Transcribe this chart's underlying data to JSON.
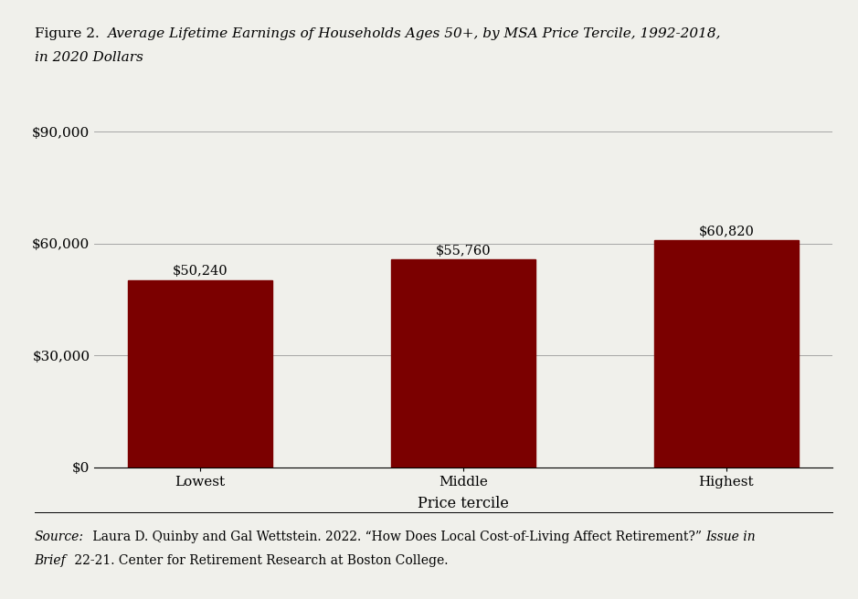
{
  "categories": [
    "Lowest",
    "Middle",
    "Highest"
  ],
  "values": [
    50240,
    55760,
    60820
  ],
  "bar_color": "#7B0000",
  "bar_labels": [
    "$50,240",
    "$55,760",
    "$60,820"
  ],
  "xlabel": "Price tercile",
  "ylim": [
    0,
    90000
  ],
  "yticks": [
    0,
    30000,
    60000,
    90000
  ],
  "ytick_labels": [
    "$0",
    "$30,000",
    "$60,000",
    "$90,000"
  ],
  "background_color": "#f0f0eb",
  "bar_label_fontsize": 10.5,
  "axis_label_fontsize": 11.5,
  "tick_label_fontsize": 11,
  "title_fontsize": 11,
  "source_fontsize": 10,
  "title_prefix": "Figure 2. ",
  "title_italic_line1": "Average Lifetime Earnings of Households Ages 50+, by MSA Price Tercile, 1992-2018,",
  "title_italic_line2": "in 2020 Dollars",
  "source_italic1": "Source:",
  "source_normal1": " Laura D. Quinby and Gal Wettstein. 2022. “How Does Local Cost-of-Living Affect Retirement?” ",
  "source_italic2": "Issue in",
  "source_italic3": "Brief",
  "source_normal2": " 22-21. Center for Retirement Research at Boston College."
}
